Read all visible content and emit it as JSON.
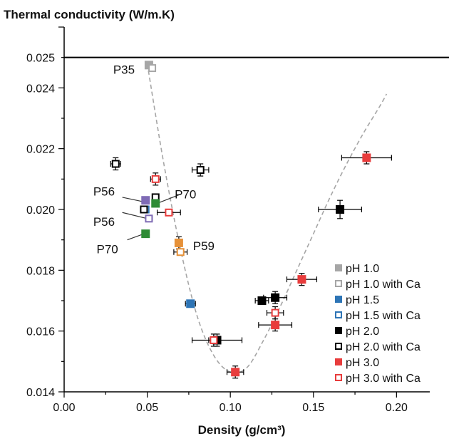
{
  "chart_data": {
    "type": "scatter",
    "title": "Thermal conductivity (W/m.K)",
    "xlabel": "Density (g/cm³)",
    "xlim": [
      0,
      0.22
    ],
    "ylim": [
      0.014,
      0.026
    ],
    "xticks": [
      "0.00",
      "0.05",
      "0.10",
      "0.15",
      "0.20"
    ],
    "xtick_values": [
      0,
      0.05,
      0.1,
      0.15,
      0.2
    ],
    "yticks": [
      "0.014",
      "0.016",
      "0.018",
      "0.020",
      "0.022",
      "0.024",
      "0.025"
    ],
    "ytick_values": [
      0.014,
      0.016,
      0.018,
      0.02,
      0.022,
      0.024,
      0.025
    ],
    "reference_line_y": 0.025,
    "legend_position": "bottom-right",
    "series": [
      {
        "name": "pH 1.0",
        "color": "#a6a6a6",
        "filled": true,
        "points": [
          {
            "x": 0.051,
            "y": 0.02475,
            "xerr": 0.001,
            "yerr": 0.0001
          }
        ]
      },
      {
        "name": "pH 1.0 with Ca",
        "color": "#a6a6a6",
        "filled": false,
        "points": [
          {
            "x": 0.053,
            "y": 0.02465,
            "xerr": 0.001,
            "yerr": 0.0001
          }
        ]
      },
      {
        "name": "pH 1.5",
        "color": "#2e75b6",
        "filled": true,
        "points": [
          {
            "x": 0.076,
            "y": 0.0169,
            "xerr": 0.003,
            "yerr": 0.0001
          }
        ]
      },
      {
        "name": "pH 1.5 with Ca",
        "color": "#2e75b6",
        "filled": false,
        "points": [
          {
            "x": 0.049,
            "y": 0.02,
            "xerr": 0.001,
            "yerr": 0.0001
          }
        ]
      },
      {
        "name": "pH 2.0",
        "color": "#000000",
        "filled": true,
        "points": [
          {
            "x": 0.092,
            "y": 0.0157,
            "xerr": 0.015,
            "yerr": 0.0002
          },
          {
            "x": 0.119,
            "y": 0.017,
            "xerr": 0.004,
            "yerr": 0.0001
          },
          {
            "x": 0.127,
            "y": 0.0171,
            "xerr": 0.007,
            "yerr": 0.0002
          },
          {
            "x": 0.166,
            "y": 0.02,
            "xerr": 0.013,
            "yerr": 0.0003
          }
        ]
      },
      {
        "name": "pH 2.0 with Ca",
        "color": "#000000",
        "filled": false,
        "points": [
          {
            "x": 0.031,
            "y": 0.0215,
            "xerr": 0.003,
            "yerr": 0.0002
          },
          {
            "x": 0.082,
            "y": 0.0213,
            "xerr": 0.005,
            "yerr": 0.0002
          },
          {
            "x": 0.048,
            "y": 0.02,
            "xerr": 0.001,
            "yerr": 0.0001
          },
          {
            "x": 0.055,
            "y": 0.0204,
            "xerr": 0.001,
            "yerr": 0.0001
          }
        ]
      },
      {
        "name": "pH 3.0",
        "color": "#e83c3c",
        "filled": true,
        "points": [
          {
            "x": 0.103,
            "y": 0.01465,
            "xerr": 0.005,
            "yerr": 0.0002
          },
          {
            "x": 0.127,
            "y": 0.0162,
            "xerr": 0.01,
            "yerr": 0.0002
          },
          {
            "x": 0.143,
            "y": 0.0177,
            "xerr": 0.009,
            "yerr": 0.0002
          },
          {
            "x": 0.182,
            "y": 0.0217,
            "xerr": 0.015,
            "yerr": 0.0002
          }
        ]
      },
      {
        "name": "pH 3.0 with Ca",
        "color": "#e83c3c",
        "filled": false,
        "points": [
          {
            "x": 0.055,
            "y": 0.021,
            "xerr": 0.003,
            "yerr": 0.0002
          },
          {
            "x": 0.063,
            "y": 0.0199,
            "xerr": 0.007,
            "yerr": 0.0001
          },
          {
            "x": 0.09,
            "y": 0.0157,
            "xerr": 0.003,
            "yerr": 0.0002
          },
          {
            "x": 0.127,
            "y": 0.0166,
            "xerr": 0.005,
            "yerr": 0.0002
          }
        ]
      },
      {
        "name": "",
        "color": "#7f6bb5",
        "filled": true,
        "points": [
          {
            "x": 0.049,
            "y": 0.0203,
            "xerr": 0.001,
            "yerr": 0.0001
          }
        ]
      },
      {
        "name": "",
        "color": "#7f6bb5",
        "filled": false,
        "points": [
          {
            "x": 0.051,
            "y": 0.0197,
            "xerr": 0.002,
            "yerr": 0.0001
          }
        ]
      },
      {
        "name": "",
        "color": "#2e8b35",
        "filled": true,
        "points": [
          {
            "x": 0.055,
            "y": 0.0202,
            "xerr": 0.002,
            "yerr": 0.0001
          },
          {
            "x": 0.049,
            "y": 0.0192,
            "xerr": 0.001,
            "yerr": 0.0001
          }
        ]
      },
      {
        "name": "",
        "color": "#e69138",
        "filled": true,
        "points": [
          {
            "x": 0.069,
            "y": 0.0189,
            "xerr": 0.002,
            "yerr": 0.0002
          }
        ]
      },
      {
        "name": "",
        "color": "#e69138",
        "filled": false,
        "points": [
          {
            "x": 0.07,
            "y": 0.0186,
            "xerr": 0.004,
            "yerr": 0.0001
          }
        ]
      }
    ],
    "trend_curve": {
      "style": "dashed",
      "color": "#a6a6a6",
      "points": [
        [
          0.05,
          0.0248
        ],
        [
          0.06,
          0.0215
        ],
        [
          0.07,
          0.0187
        ],
        [
          0.08,
          0.0165
        ],
        [
          0.09,
          0.0152
        ],
        [
          0.1,
          0.01465
        ],
        [
          0.11,
          0.0148
        ],
        [
          0.12,
          0.0157
        ],
        [
          0.13,
          0.0168
        ],
        [
          0.14,
          0.018
        ],
        [
          0.15,
          0.0192
        ],
        [
          0.16,
          0.0204
        ],
        [
          0.17,
          0.0215
        ],
        [
          0.18,
          0.0225
        ],
        [
          0.19,
          0.0234
        ],
        [
          0.194,
          0.0238
        ]
      ]
    },
    "annotations": [
      {
        "text": "P35",
        "x": 0.036,
        "y": 0.0246
      },
      {
        "text": "P56",
        "x": 0.024,
        "y": 0.0206
      },
      {
        "text": "P70",
        "x": 0.073,
        "y": 0.0205
      },
      {
        "text": "P56",
        "x": 0.024,
        "y": 0.0196
      },
      {
        "text": "P70",
        "x": 0.026,
        "y": 0.0187
      },
      {
        "text": "P59",
        "x": 0.084,
        "y": 0.0188
      }
    ],
    "annotation_leaders": [
      {
        "x1": 0.035,
        "y1": 0.0204,
        "x2": 0.048,
        "y2": 0.02025
      },
      {
        "x1": 0.07,
        "y1": 0.0205,
        "x2": 0.056,
        "y2": 0.0202
      },
      {
        "x1": 0.035,
        "y1": 0.0199,
        "x2": 0.05,
        "y2": 0.0197
      },
      {
        "x1": 0.038,
        "y1": 0.019,
        "x2": 0.048,
        "y2": 0.0192
      }
    ]
  }
}
